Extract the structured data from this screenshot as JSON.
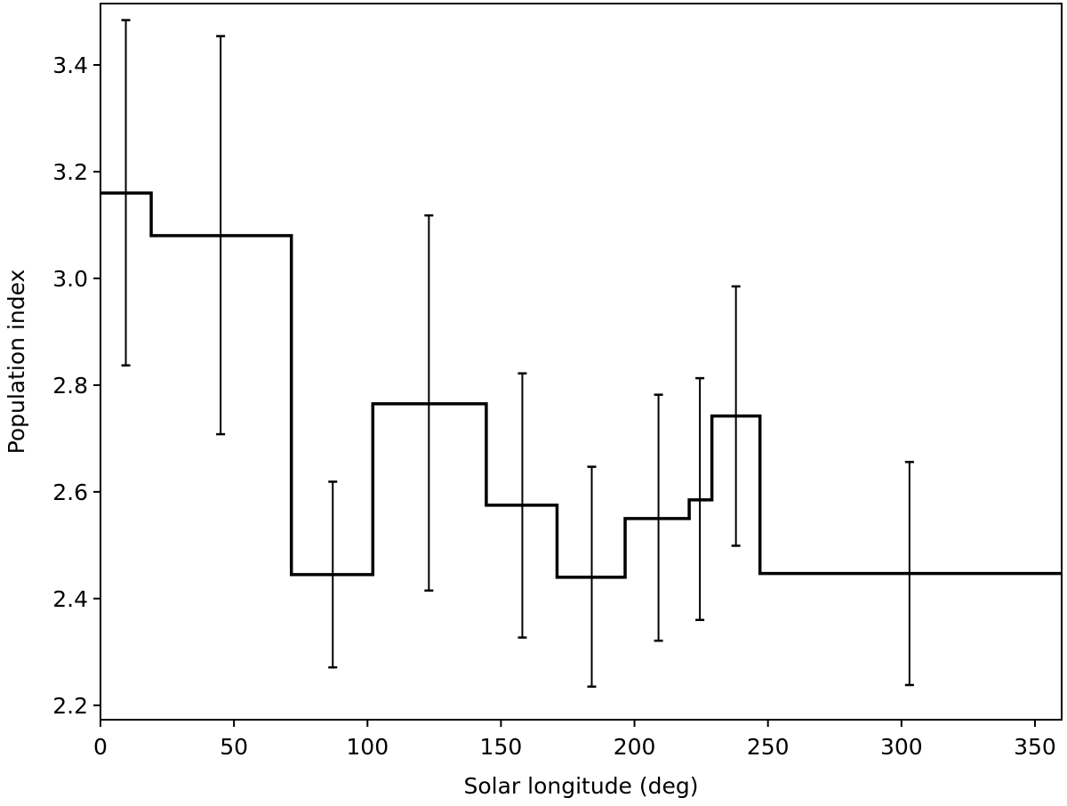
{
  "chart_data": {
    "type": "line",
    "title": "",
    "xlabel": "Solar longitude (deg)",
    "ylabel": "Population index",
    "xlim": [
      0,
      360
    ],
    "ylim": [
      2.173,
      3.515
    ],
    "xticks": [
      0,
      50,
      100,
      150,
      200,
      250,
      300,
      350
    ],
    "yticks": [
      2.2,
      2.4,
      2.6,
      2.8,
      3.0,
      3.2,
      3.4
    ],
    "ytick_labels": [
      "2.2",
      "2.4",
      "2.6",
      "2.8",
      "3.0",
      "3.2",
      "3.4"
    ],
    "grid": false,
    "legend": "none",
    "series": [
      {
        "style": "step",
        "color": "#000000",
        "bins": [
          {
            "x0": 0,
            "x1": 19,
            "y": 3.16
          },
          {
            "x0": 19,
            "x1": 71.5,
            "y": 3.08
          },
          {
            "x0": 71.5,
            "x1": 102,
            "y": 2.445
          },
          {
            "x0": 102,
            "x1": 144.5,
            "y": 2.765
          },
          {
            "x0": 144.5,
            "x1": 171,
            "y": 2.575
          },
          {
            "x0": 171,
            "x1": 196.5,
            "y": 2.44
          },
          {
            "x0": 196.5,
            "x1": 220.5,
            "y": 2.55
          },
          {
            "x0": 220.5,
            "x1": 229,
            "y": 2.585
          },
          {
            "x0": 229,
            "x1": 247,
            "y": 2.742
          },
          {
            "x0": 247,
            "x1": 360,
            "y": 2.447
          }
        ]
      },
      {
        "style": "errorbar",
        "color": "#000000",
        "points": [
          {
            "x": 9.5,
            "low": 2.837,
            "high": 3.484
          },
          {
            "x": 45,
            "low": 2.708,
            "high": 3.454
          },
          {
            "x": 87,
            "low": 2.271,
            "high": 2.619
          },
          {
            "x": 123,
            "low": 2.415,
            "high": 3.118
          },
          {
            "x": 158,
            "low": 2.327,
            "high": 2.822
          },
          {
            "x": 184,
            "low": 2.235,
            "high": 2.647
          },
          {
            "x": 209,
            "low": 2.321,
            "high": 2.782
          },
          {
            "x": 224.5,
            "low": 2.36,
            "high": 2.813
          },
          {
            "x": 238,
            "low": 2.499,
            "high": 2.985
          },
          {
            "x": 303,
            "low": 2.238,
            "high": 2.656
          }
        ]
      }
    ]
  }
}
